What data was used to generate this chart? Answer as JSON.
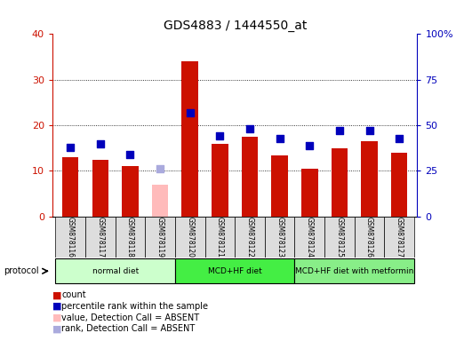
{
  "title": "GDS4883 / 1444550_at",
  "samples": [
    "GSM878116",
    "GSM878117",
    "GSM878118",
    "GSM878119",
    "GSM878120",
    "GSM878121",
    "GSM878122",
    "GSM878123",
    "GSM878124",
    "GSM878125",
    "GSM878126",
    "GSM878127"
  ],
  "bar_values": [
    13,
    12.5,
    11,
    7,
    34,
    16,
    17.5,
    13.5,
    10.5,
    15,
    16.5,
    14
  ],
  "bar_absent": [
    false,
    false,
    false,
    true,
    false,
    false,
    false,
    false,
    false,
    false,
    false,
    false
  ],
  "percentile_values": [
    38,
    40,
    34,
    26,
    57,
    44,
    48,
    43,
    39,
    47,
    47,
    43
  ],
  "percentile_absent": [
    false,
    false,
    false,
    true,
    false,
    false,
    false,
    false,
    false,
    false,
    false,
    false
  ],
  "bar_color_normal": "#cc1100",
  "bar_color_absent": "#ffbbbb",
  "dot_color_normal": "#0000bb",
  "dot_color_absent": "#aaaadd",
  "ylim_left": [
    0,
    40
  ],
  "ylim_right": [
    0,
    100
  ],
  "yticks_left": [
    0,
    10,
    20,
    30,
    40
  ],
  "ytick_labels_left": [
    "0",
    "10",
    "20",
    "30",
    "40"
  ],
  "yticks_right": [
    0,
    25,
    50,
    75,
    100
  ],
  "ytick_labels_right": [
    "0",
    "25",
    "50",
    "75",
    "100%"
  ],
  "groups": [
    {
      "label": "normal diet",
      "start": 0,
      "end": 4,
      "color": "#ccffcc"
    },
    {
      "label": "MCD+HF diet",
      "start": 4,
      "end": 8,
      "color": "#44ee44"
    },
    {
      "label": "MCD+HF diet with metformin",
      "start": 8,
      "end": 12,
      "color": "#88ee88"
    }
  ],
  "protocol_label": "protocol",
  "legend_items": [
    {
      "label": "count",
      "color": "#cc1100"
    },
    {
      "label": "percentile rank within the sample",
      "color": "#0000bb"
    },
    {
      "label": "value, Detection Call = ABSENT",
      "color": "#ffbbbb"
    },
    {
      "label": "rank, Detection Call = ABSENT",
      "color": "#aaaadd"
    }
  ],
  "bar_width": 0.55,
  "dot_size": 40,
  "bg_color": "#ffffff",
  "plot_bg_color": "#ffffff",
  "left_tick_color": "#cc1100",
  "right_tick_color": "#0000bb",
  "sample_bg_color": "#dddddd"
}
